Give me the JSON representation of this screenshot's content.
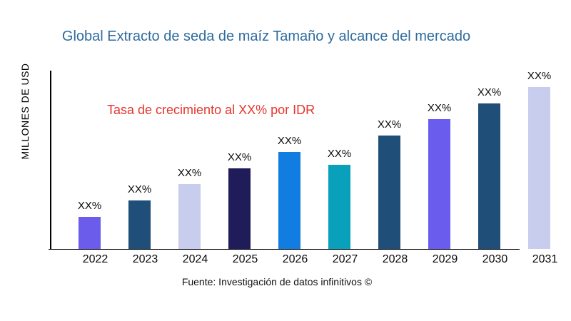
{
  "title": "Global Extracto de seda de maíz Tamaño y alcance del mercado",
  "colors": {
    "title": "#2e6b9e",
    "annotation": "#e7342c",
    "axis": "#000000"
  },
  "chart_data": {
    "type": "bar",
    "title": "Global Extracto de seda de maíz Tamaño y alcance del mercado",
    "ylabel": "MILLONES DE USD",
    "xlabel": "",
    "categories": [
      "2022",
      "2023",
      "2024",
      "2025",
      "2026",
      "2027",
      "2028",
      "2029",
      "2030",
      "2031"
    ],
    "values_pct_of_max": [
      20,
      30,
      40,
      50,
      60,
      52,
      70,
      80,
      90,
      100
    ],
    "bar_value_labels": [
      "XX%",
      "XX%",
      "XX%",
      "XX%",
      "XX%",
      "XX%",
      "XX%",
      "XX%",
      "XX%",
      "XX%"
    ],
    "bar_colors": [
      "#6c5ceb",
      "#1f4e79",
      "#c8cdee",
      "#201c5a",
      "#117de0",
      "#08a0ba",
      "#1f4e79",
      "#6a5ded",
      "#1f4e79",
      "#c8cdee"
    ],
    "annotation": "Tasa de crecimiento al XX% por IDR",
    "source": "Fuente: Investigación de datos infinitivos ©",
    "grid": false,
    "legend": false,
    "y_tick_labels_shown": false
  }
}
